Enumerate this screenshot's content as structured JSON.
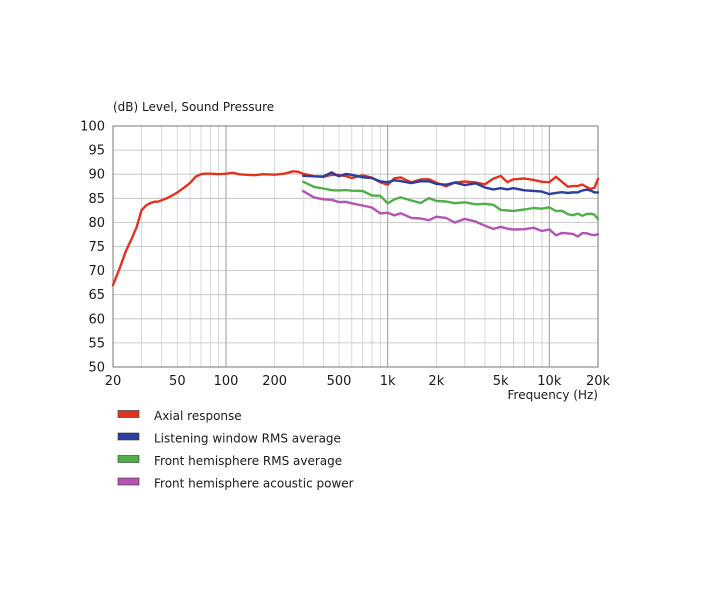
{
  "chart_data": {
    "type": "line",
    "title": "(dB)  Level, Sound Pressure",
    "xlabel": "Frequency  (Hz)",
    "ylabel": "",
    "x_scale": "log",
    "xlim": [
      20,
      20000
    ],
    "ylim": [
      50,
      100
    ],
    "grid": true,
    "legend_position": "below",
    "y_ticks": [
      50,
      55,
      60,
      65,
      70,
      75,
      80,
      85,
      90,
      95,
      100
    ],
    "x_ticks": [
      {
        "value": 20,
        "label": "20"
      },
      {
        "value": 50,
        "label": "50"
      },
      {
        "value": 100,
        "label": "100"
      },
      {
        "value": 200,
        "label": "200"
      },
      {
        "value": 500,
        "label": "500"
      },
      {
        "value": 1000,
        "label": "1k"
      },
      {
        "value": 2000,
        "label": "2k"
      },
      {
        "value": 5000,
        "label": "5k"
      },
      {
        "value": 10000,
        "label": "10k"
      },
      {
        "value": 20000,
        "label": "20k"
      }
    ],
    "series": [
      {
        "name": "Axial response",
        "color": "#e0341e",
        "x": [
          20,
          22,
          24,
          26,
          28,
          30,
          32,
          34,
          36,
          38,
          40,
          43,
          46,
          50,
          55,
          60,
          65,
          70,
          75,
          80,
          90,
          100,
          110,
          120,
          130,
          150,
          170,
          200,
          230,
          260,
          280,
          300,
          350,
          400,
          450,
          500,
          550,
          600,
          700,
          800,
          900,
          1000,
          1100,
          1200,
          1400,
          1600,
          1800,
          2000,
          2300,
          2600,
          3000,
          3500,
          4000,
          4500,
          5000,
          5500,
          6000,
          7000,
          8000,
          9000,
          10000,
          11000,
          12000,
          13000,
          14000,
          15000,
          16000,
          17000,
          18000,
          19000,
          20000
        ],
        "y": [
          67,
          70.5,
          74,
          76.5,
          79,
          82.5,
          83.5,
          84,
          84.3,
          84.3,
          84.6,
          85,
          85.5,
          86.2,
          87.2,
          88.2,
          89.5,
          90,
          90.1,
          90.1,
          90,
          90.1,
          90.3,
          90,
          89.9,
          89.8,
          90,
          89.9,
          90.1,
          90.6,
          90.5,
          90.1,
          89.5,
          89.8,
          90.1,
          89.9,
          89.6,
          89.6,
          89.4,
          89.2,
          88.4,
          88,
          88.9,
          89.2,
          88.7,
          88.9,
          89.2,
          88.1,
          87.8,
          88.2,
          88.5,
          88.6,
          88.3,
          88.7,
          89.2,
          88.7,
          89,
          88.7,
          89.1,
          88.5,
          88.3,
          89.3,
          88.6,
          87.7,
          87.1,
          87.6,
          88.1,
          87.3,
          87.1,
          87.5,
          88.8
        ]
      },
      {
        "name": "Listening window RMS average",
        "color": "#2a3e9e",
        "x": [
          300,
          350,
          400,
          450,
          500,
          550,
          600,
          700,
          800,
          900,
          1000,
          1100,
          1200,
          1400,
          1600,
          1800,
          2000,
          2300,
          2600,
          3000,
          3500,
          4000,
          4500,
          5000,
          5500,
          6000,
          7000,
          8000,
          9000,
          10000,
          11000,
          12000,
          13000,
          14000,
          15000,
          16000,
          17000,
          18000,
          19000,
          20000
        ],
        "y": [
          89.8,
          89.7,
          89.9,
          90,
          89.8,
          89.7,
          89.9,
          89.6,
          89.1,
          88.6,
          88.1,
          88.6,
          88.9,
          88.4,
          88.6,
          88.9,
          88.4,
          87.9,
          88.1,
          87.6,
          87.7,
          87.4,
          86.9,
          87.1,
          86.9,
          86.8,
          86.7,
          86.6,
          86.6,
          86.1,
          85.9,
          86.6,
          86.3,
          86,
          85.9,
          86.2,
          86.4,
          86.3,
          86,
          86.1
        ]
      },
      {
        "name": "Front hemisphere RMS average",
        "color": "#4fb04a",
        "x": [
          300,
          350,
          400,
          450,
          500,
          550,
          600,
          700,
          800,
          900,
          1000,
          1100,
          1200,
          1400,
          1600,
          1800,
          2000,
          2300,
          2600,
          3000,
          3500,
          4000,
          4500,
          5000,
          5500,
          6000,
          7000,
          8000,
          9000,
          10000,
          11000,
          12000,
          13000,
          14000,
          15000,
          16000,
          17000,
          18000,
          19000,
          20000
        ],
        "y": [
          88.4,
          87.8,
          87.2,
          86.8,
          86.9,
          86.8,
          86.4,
          86.3,
          85.8,
          85.1,
          84.4,
          84.9,
          85.1,
          84.6,
          84.4,
          84.6,
          84.5,
          84,
          83.9,
          84.2,
          84.1,
          83.6,
          83.3,
          82.8,
          82.9,
          82.7,
          82.5,
          82.8,
          82.7,
          82.8,
          82.6,
          82.1,
          82,
          81.9,
          82.2,
          81.8,
          81.7,
          81.5,
          81.3,
          81
        ]
      },
      {
        "name": "Front hemisphere acoustic power",
        "color": "#b554b4",
        "x": [
          300,
          350,
          400,
          450,
          500,
          550,
          600,
          700,
          800,
          900,
          1000,
          1100,
          1200,
          1400,
          1600,
          1800,
          2000,
          2300,
          2600,
          3000,
          3500,
          4000,
          4500,
          5000,
          5500,
          6000,
          7000,
          8000,
          9000,
          10000,
          11000,
          12000,
          13000,
          14000,
          15000,
          16000,
          17000,
          18000,
          19000,
          20000
        ],
        "y": [
          86.5,
          85.6,
          85,
          84.7,
          84.6,
          84.4,
          84.2,
          83.7,
          82.8,
          82.2,
          82.3,
          81.9,
          81.8,
          81.3,
          80.9,
          80.8,
          81.2,
          81,
          80.4,
          80.5,
          80.2,
          79.1,
          78.8,
          78.7,
          78.5,
          78.4,
          78.8,
          79,
          78.6,
          78.2,
          77.7,
          78.2,
          78,
          77.8,
          77.5,
          77.7,
          77.8,
          77.6,
          77.3,
          77.2
        ]
      }
    ]
  }
}
